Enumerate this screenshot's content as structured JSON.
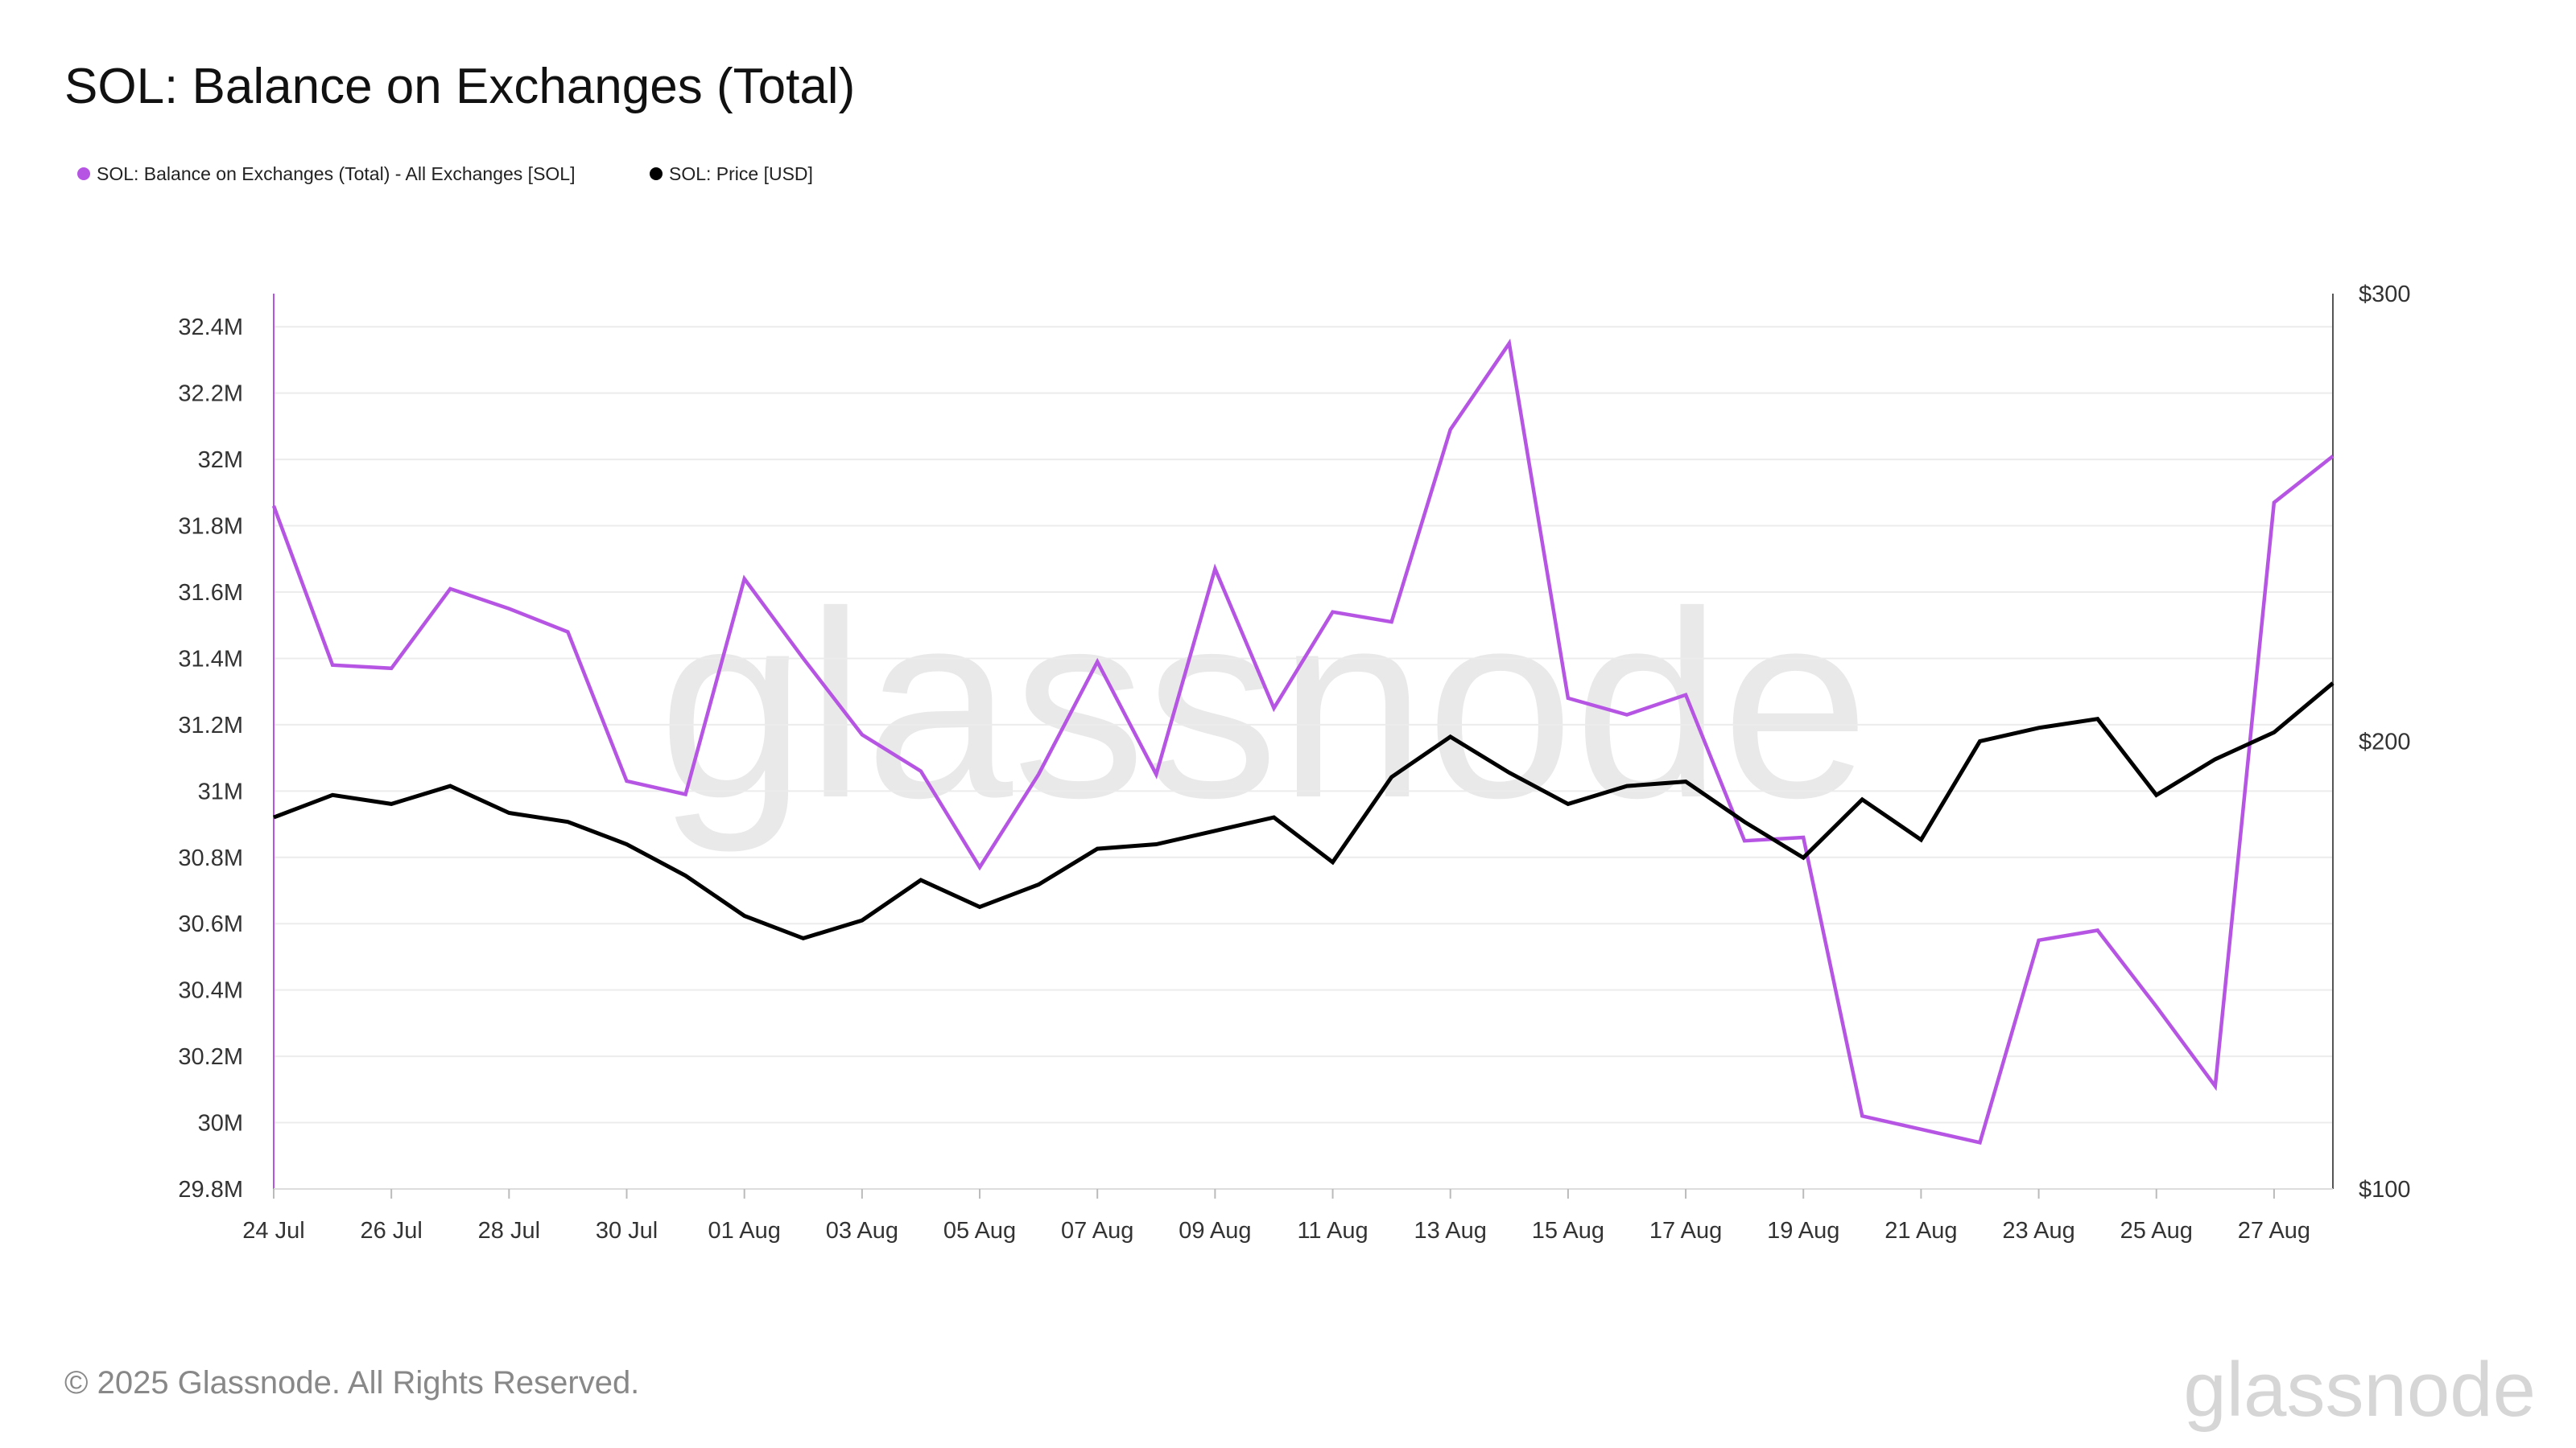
{
  "title": "SOL: Balance on Exchanges (Total)",
  "footer": "© 2025 Glassnode. All Rights Reserved.",
  "watermark": "glassnode",
  "brand": "glassnode",
  "legend": [
    {
      "label": "SOL: Balance on Exchanges (Total) - All Exchanges [SOL]",
      "color": "#b655e4"
    },
    {
      "label": "SOL: Price [USD]",
      "color": "#000000"
    }
  ],
  "chart_data": {
    "type": "line",
    "title": "SOL: Balance on Exchanges (Total)",
    "x": [
      "24 Jul",
      "25 Jul",
      "26 Jul",
      "27 Jul",
      "28 Jul",
      "29 Jul",
      "30 Jul",
      "31 Jul",
      "01 Aug",
      "02 Aug",
      "03 Aug",
      "04 Aug",
      "05 Aug",
      "06 Aug",
      "07 Aug",
      "08 Aug",
      "09 Aug",
      "10 Aug",
      "11 Aug",
      "12 Aug",
      "13 Aug",
      "14 Aug",
      "15 Aug",
      "16 Aug",
      "17 Aug",
      "18 Aug",
      "19 Aug",
      "20 Aug",
      "21 Aug",
      "22 Aug",
      "23 Aug",
      "24 Aug",
      "25 Aug",
      "26 Aug",
      "27 Aug",
      "28 Aug"
    ],
    "x_tick_labels": [
      "24 Jul",
      "26 Jul",
      "28 Jul",
      "30 Jul",
      "01 Aug",
      "03 Aug",
      "05 Aug",
      "07 Aug",
      "09 Aug",
      "11 Aug",
      "13 Aug",
      "15 Aug",
      "17 Aug",
      "19 Aug",
      "21 Aug",
      "23 Aug",
      "25 Aug",
      "27 Aug"
    ],
    "left_axis": {
      "ylim": [
        29.8,
        32.5
      ],
      "ticks": [
        29.8,
        30.0,
        30.2,
        30.4,
        30.6,
        30.8,
        31.0,
        31.2,
        31.4,
        31.6,
        31.8,
        32.0,
        32.2,
        32.4
      ],
      "tick_labels": [
        "29.8M",
        "30M",
        "30.2M",
        "30.4M",
        "30.6M",
        "30.8M",
        "31M",
        "31.2M",
        "31.4M",
        "31.6M",
        "31.8M",
        "32M",
        "32.2M",
        "32.4M"
      ]
    },
    "right_axis": {
      "ylim": [
        100,
        300
      ],
      "ticks": [
        100,
        200,
        300
      ],
      "tick_labels": [
        "$100",
        "$200",
        "$300"
      ]
    },
    "series": [
      {
        "name": "SOL: Balance on Exchanges (Total) - All Exchanges [SOL]",
        "axis": "left",
        "color": "#b655e4",
        "values": [
          31.86,
          31.38,
          31.37,
          31.61,
          31.55,
          31.48,
          31.03,
          30.99,
          31.64,
          31.4,
          31.17,
          31.06,
          30.77,
          31.05,
          31.39,
          31.05,
          31.67,
          31.25,
          31.54,
          31.51,
          32.09,
          32.35,
          31.28,
          31.23,
          31.29,
          30.85,
          30.86,
          30.02,
          29.98,
          29.94,
          30.55,
          30.58,
          30.35,
          30.11,
          31.87,
          32.01
        ]
      },
      {
        "name": "SOL: Price [USD]",
        "axis": "right",
        "color": "#000000",
        "values": [
          183,
          188,
          186,
          190,
          184,
          182,
          177,
          170,
          161,
          156,
          160,
          169,
          163,
          168,
          176,
          177,
          180,
          183,
          173,
          192,
          201,
          193,
          186,
          190,
          191,
          182,
          174,
          187,
          178,
          200,
          203,
          205,
          188,
          196,
          202,
          213
        ]
      }
    ]
  }
}
